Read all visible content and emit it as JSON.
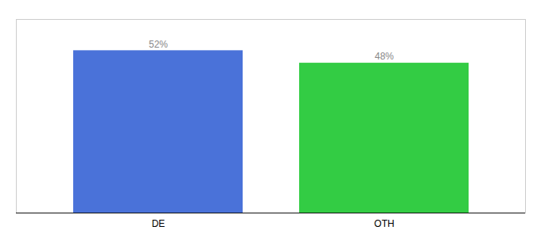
{
  "chart_data": {
    "type": "bar",
    "categories": [
      "DE",
      "OTH"
    ],
    "values": [
      52,
      48
    ],
    "value_labels": [
      "52%",
      "48%"
    ],
    "colors": [
      "#4a72d9",
      "#33cc44"
    ],
    "ylim": [
      0,
      62
    ],
    "data_labels": true,
    "tick_labels": "x"
  }
}
